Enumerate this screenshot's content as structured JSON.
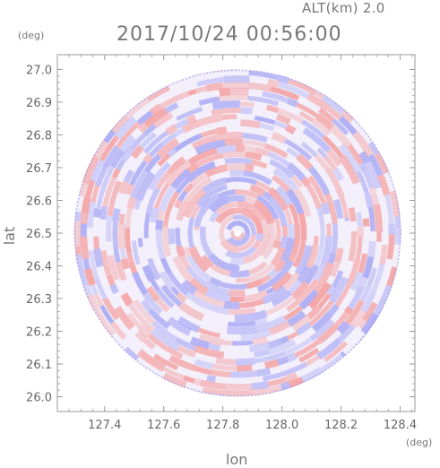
{
  "header": {
    "altitude_label": "ALT(km) 2.0",
    "timestamp": "2017/10/24 00:56:00"
  },
  "axes": {
    "y_unit": "(deg)",
    "x_unit": "(deg)",
    "y_label": "lat",
    "x_label": "lon"
  },
  "chart_data": {
    "type": "heatmap",
    "title": "2017/10/24 00:56:00",
    "subtitle": "ALT(km) 2.0",
    "xlabel": "lon",
    "ylabel": "lat",
    "x_unit": "(deg)",
    "y_unit": "(deg)",
    "xlim": [
      127.24,
      128.45
    ],
    "ylim": [
      25.955,
      27.045
    ],
    "x_ticks": [
      127.4,
      127.6,
      127.8,
      128.0,
      128.2,
      128.4
    ],
    "x_tick_labels": [
      "127.4",
      "127.6",
      "127.8",
      "128.0",
      "128.2",
      "128.4"
    ],
    "y_ticks": [
      26.0,
      26.1,
      26.2,
      26.3,
      26.4,
      26.5,
      26.6,
      26.7,
      26.8,
      26.9,
      27.0
    ],
    "y_tick_labels": [
      "26.0",
      "26.1",
      "26.2",
      "26.3",
      "26.4",
      "26.5",
      "26.6",
      "26.7",
      "26.8",
      "26.9",
      "27.0"
    ],
    "radar_center": {
      "lon": 127.85,
      "lat": 26.5
    },
    "radar_range_deg_lat": 0.5,
    "field": "Doppler velocity pattern: alternating positive (red) and negative (blue) patches in concentric range rings",
    "colors": {
      "positive": "#f4a0a0",
      "negative": "#a8a8f4",
      "neutral": "#ffffff"
    },
    "grid": false
  }
}
